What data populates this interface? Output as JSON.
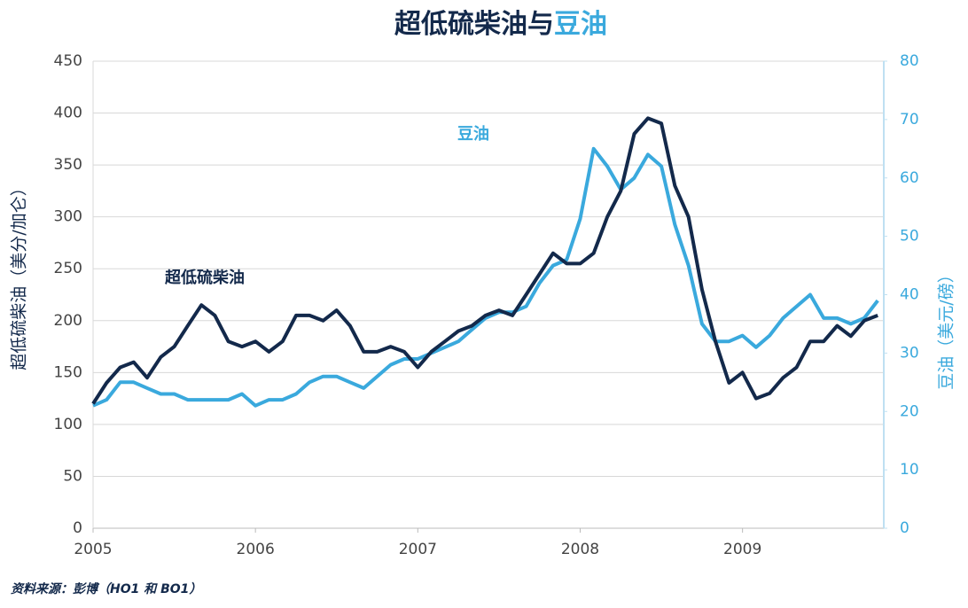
{
  "chart_data": {
    "type": "line",
    "title_parts": [
      "超低硫柴油与",
      "豆油"
    ],
    "y_label": "超低硫柴油（美分/加仑）",
    "y2_label": "豆油（美元/磅）",
    "annotations": [
      "超低硫柴油",
      "豆油"
    ],
    "source": "资料来源：彭博（HO1 和 BO1）",
    "x": [
      2005.0,
      2005.083,
      2005.167,
      2005.25,
      2005.333,
      2005.417,
      2005.5,
      2005.583,
      2005.667,
      2005.75,
      2005.833,
      2005.917,
      2006.0,
      2006.083,
      2006.167,
      2006.25,
      2006.333,
      2006.417,
      2006.5,
      2006.583,
      2006.667,
      2006.75,
      2006.833,
      2006.917,
      2007.0,
      2007.083,
      2007.167,
      2007.25,
      2007.333,
      2007.417,
      2007.5,
      2007.583,
      2007.667,
      2007.75,
      2007.833,
      2007.917,
      2008.0,
      2008.083,
      2008.167,
      2008.25,
      2008.333,
      2008.417,
      2008.5,
      2008.583,
      2008.667,
      2008.75,
      2008.833,
      2008.917,
      2009.0,
      2009.083,
      2009.167,
      2009.25,
      2009.333,
      2009.417,
      2009.5,
      2009.583,
      2009.667,
      2009.75,
      2009.833
    ],
    "series": [
      {
        "name": "超低硫柴油",
        "color": "#13294b",
        "axis": "y",
        "values": [
          120,
          140,
          155,
          160,
          145,
          165,
          175,
          195,
          215,
          205,
          180,
          175,
          180,
          170,
          180,
          205,
          205,
          200,
          210,
          195,
          170,
          170,
          175,
          170,
          155,
          170,
          180,
          190,
          195,
          205,
          210,
          205,
          225,
          245,
          265,
          255,
          255,
          265,
          300,
          325,
          380,
          395,
          390,
          330,
          300,
          230,
          180,
          140,
          150,
          125,
          130,
          145,
          155,
          180,
          180,
          195,
          185,
          200,
          205
        ]
      },
      {
        "name": "豆油",
        "color": "#3aa9dd",
        "axis": "y2",
        "values": [
          21,
          22,
          25,
          25,
          24,
          23,
          23,
          22,
          22,
          22,
          22,
          23,
          21,
          22,
          22,
          23,
          25,
          26,
          26,
          25,
          24,
          26,
          28,
          29,
          29,
          30,
          31,
          32,
          34,
          36,
          37,
          37,
          38,
          42,
          45,
          46,
          53,
          65,
          62,
          58,
          60,
          64,
          62,
          52,
          45,
          35,
          32,
          32,
          33,
          31,
          33,
          36,
          38,
          40,
          36,
          36,
          35,
          36,
          39
        ]
      }
    ],
    "xlim": [
      2005,
      2009.87
    ],
    "xticks": [
      2005,
      2006,
      2007,
      2008,
      2009
    ],
    "ylim": [
      0,
      450
    ],
    "yticks": [
      0,
      50,
      100,
      150,
      200,
      250,
      300,
      350,
      400,
      450
    ],
    "y2lim": [
      0,
      80
    ],
    "y2ticks": [
      0,
      10,
      20,
      30,
      40,
      50,
      60,
      70,
      80
    ],
    "grid": true
  }
}
